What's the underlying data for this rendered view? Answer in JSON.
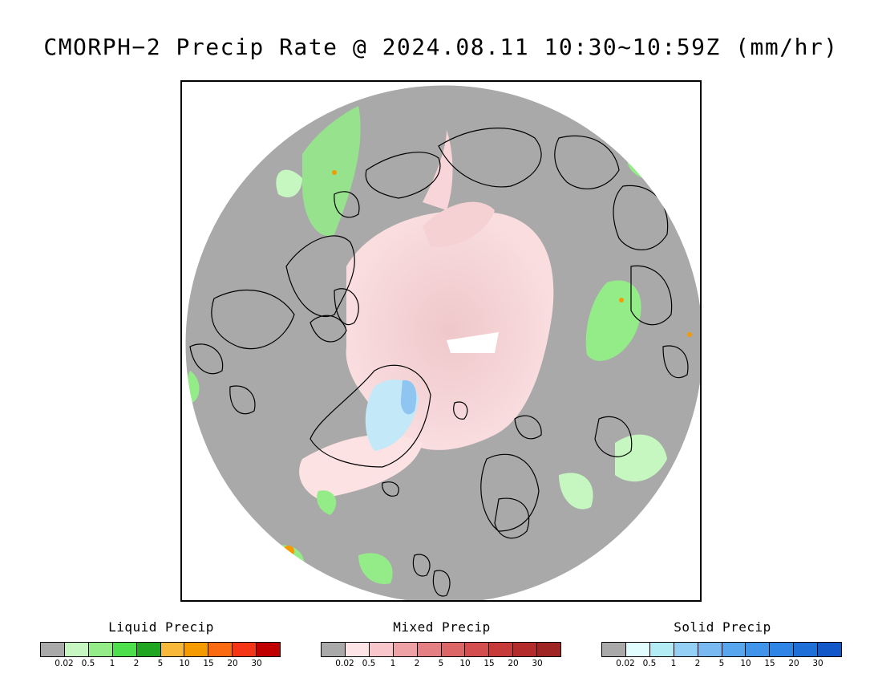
{
  "title": "CMORPH−2 Precip Rate @ 2024.08.11 10:30~10:59Z (mm/hr)",
  "colors": {
    "no_precip": "#a9a9a9",
    "land_outline": "#000000"
  },
  "legends": [
    {
      "title": "Liquid Precip",
      "colors": [
        "#a9a9a9",
        "#c6f7c1",
        "#94ec88",
        "#4ee04c",
        "#1fa51f",
        "#f8b93a",
        "#f59a00",
        "#fb6a10",
        "#f53616",
        "#c00000"
      ],
      "ticks": [
        "0.02",
        "0.5",
        "1",
        "2",
        "5",
        "10",
        "15",
        "20",
        "30"
      ]
    },
    {
      "title": "Mixed Precip",
      "colors": [
        "#a9a9a9",
        "#fde4e6",
        "#f9c7cb",
        "#efa2a6",
        "#e48084",
        "#dc6566",
        "#d34e4f",
        "#c63a3a",
        "#b32b2b",
        "#9f2424"
      ],
      "ticks": [
        "0.02",
        "0.5",
        "1",
        "2",
        "5",
        "10",
        "15",
        "20",
        "30"
      ]
    },
    {
      "title": "Solid Precip",
      "colors": [
        "#a9a9a9",
        "#e2fdfd",
        "#b4ecf6",
        "#94d0f5",
        "#79b9f2",
        "#57a6ee",
        "#4094ea",
        "#2e85e6",
        "#1f6fd9",
        "#1358c8"
      ],
      "ticks": [
        "0.02",
        "0.5",
        "1",
        "2",
        "5",
        "10",
        "15",
        "20",
        "30"
      ]
    }
  ]
}
